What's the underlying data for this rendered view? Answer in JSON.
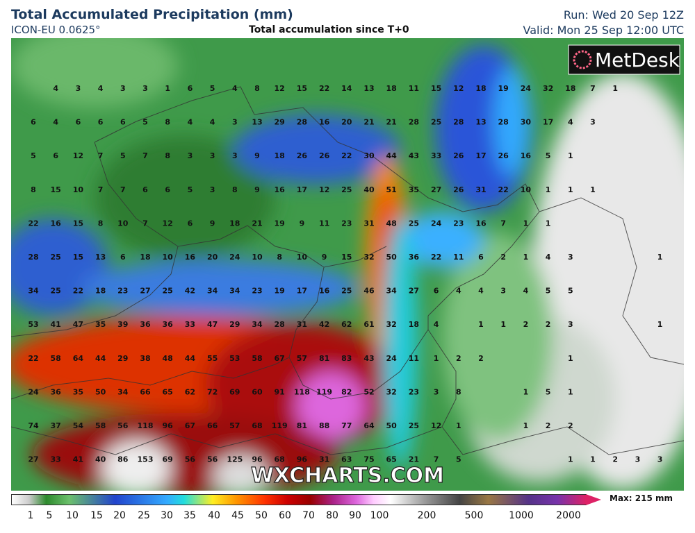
{
  "header": {
    "title": "Total Accumulated Precipitation (mm)",
    "model": "ICON-EU 0.0625°",
    "subtitle": "Total accumulation since T+0",
    "run": "Run: Wed 20 Sep 12Z",
    "valid": "Valid: Mon 25 Sep 12:00 UTC"
  },
  "logo": "MetDesk",
  "watermark": "WXCHARTS.COM",
  "grid": {
    "rows": [
      [
        null,
        4,
        3,
        4,
        3,
        3,
        1,
        6,
        5,
        4,
        8,
        12,
        15,
        22,
        14,
        13,
        18,
        11,
        15,
        12,
        18,
        19,
        24,
        32,
        18,
        7,
        1,
        null,
        null
      ],
      [
        6,
        4,
        6,
        6,
        6,
        5,
        8,
        4,
        4,
        3,
        13,
        29,
        28,
        16,
        20,
        21,
        21,
        28,
        25,
        28,
        13,
        28,
        30,
        17,
        4,
        3,
        null,
        null,
        null
      ],
      [
        5,
        6,
        12,
        7,
        5,
        7,
        8,
        3,
        3,
        3,
        9,
        18,
        26,
        26,
        22,
        30,
        44,
        43,
        33,
        26,
        17,
        26,
        16,
        5,
        1,
        null,
        null,
        null,
        null
      ],
      [
        8,
        15,
        10,
        7,
        7,
        6,
        6,
        5,
        3,
        8,
        9,
        16,
        17,
        12,
        25,
        40,
        51,
        35,
        27,
        26,
        31,
        22,
        10,
        1,
        1,
        1,
        null,
        null,
        null
      ],
      [
        22,
        16,
        15,
        8,
        10,
        7,
        12,
        6,
        9,
        18,
        21,
        19,
        9,
        11,
        23,
        31,
        48,
        25,
        24,
        23,
        16,
        7,
        1,
        1,
        null,
        null,
        null,
        null,
        null
      ],
      [
        28,
        25,
        15,
        13,
        6,
        18,
        10,
        16,
        20,
        24,
        10,
        8,
        10,
        9,
        15,
        32,
        50,
        36,
        22,
        11,
        6,
        2,
        1,
        4,
        3,
        null,
        null,
        null,
        1
      ],
      [
        34,
        25,
        22,
        18,
        23,
        27,
        25,
        42,
        34,
        34,
        23,
        19,
        17,
        16,
        25,
        46,
        34,
        27,
        6,
        4,
        4,
        3,
        4,
        5,
        5,
        null,
        null,
        null,
        null
      ],
      [
        53,
        41,
        47,
        35,
        39,
        36,
        36,
        33,
        47,
        29,
        34,
        28,
        31,
        42,
        62,
        61,
        32,
        18,
        4,
        null,
        1,
        1,
        2,
        2,
        3,
        null,
        null,
        null,
        1
      ],
      [
        22,
        58,
        64,
        44,
        29,
        38,
        48,
        44,
        55,
        53,
        58,
        67,
        57,
        81,
        83,
        43,
        24,
        11,
        1,
        2,
        2,
        null,
        null,
        null,
        1,
        null,
        null,
        null,
        null
      ],
      [
        24,
        36,
        35,
        50,
        34,
        66,
        65,
        62,
        72,
        69,
        60,
        91,
        118,
        119,
        82,
        52,
        32,
        23,
        3,
        8,
        null,
        null,
        1,
        5,
        1,
        null,
        null,
        null,
        null
      ],
      [
        74,
        37,
        54,
        58,
        56,
        118,
        96,
        67,
        66,
        57,
        68,
        119,
        81,
        88,
        77,
        64,
        50,
        25,
        12,
        1,
        null,
        null,
        1,
        2,
        2,
        null,
        null,
        null,
        null
      ],
      [
        27,
        33,
        41,
        40,
        86,
        153,
        69,
        56,
        56,
        125,
        96,
        68,
        96,
        31,
        63,
        75,
        65,
        21,
        7,
        5,
        null,
        null,
        null,
        null,
        1,
        1,
        2,
        3,
        3
      ]
    ]
  },
  "legend": {
    "ticks": [
      1,
      5,
      10,
      15,
      20,
      25,
      30,
      35,
      40,
      45,
      50,
      60,
      70,
      80,
      90,
      100,
      200,
      500,
      1000,
      2000
    ],
    "max_label": "Max: 215 mm"
  }
}
